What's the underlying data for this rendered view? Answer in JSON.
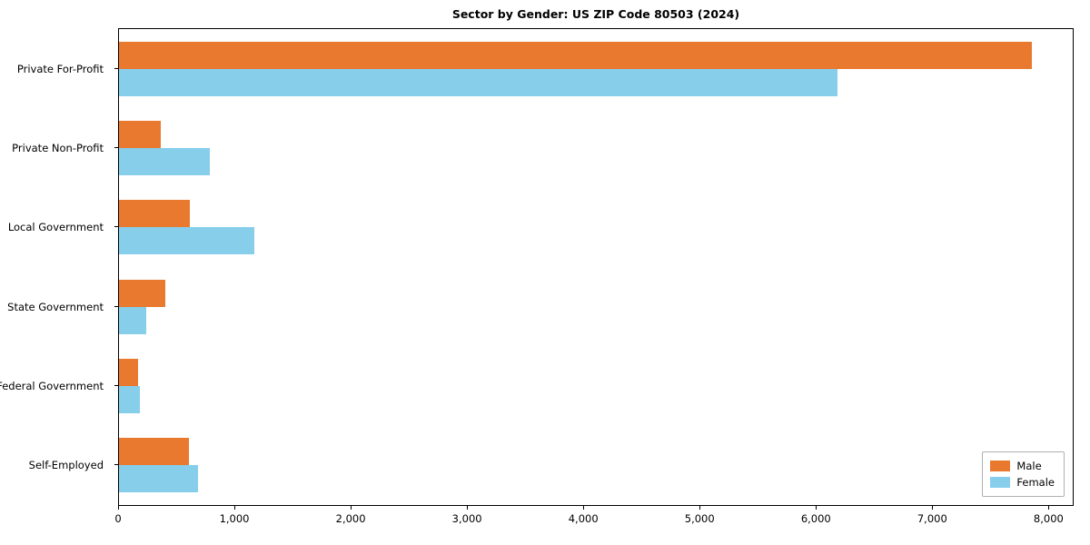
{
  "chart_data": {
    "type": "bar",
    "orientation": "horizontal",
    "title": "Sector by Gender: US ZIP Code 80503 (2024)",
    "categories": [
      "Private For-Profit",
      "Private Non-Profit",
      "Local Government",
      "State Government",
      "Federal Government",
      "Self-Employed"
    ],
    "series": [
      {
        "name": "Male",
        "color": "#e8792e",
        "values": [
          7850,
          360,
          610,
          400,
          165,
          600
        ]
      },
      {
        "name": "Female",
        "color": "#87ceeb",
        "values": [
          6180,
          780,
          1160,
          235,
          180,
          680
        ]
      }
    ],
    "xlim": [
      0,
      8200
    ],
    "xticks": [
      0,
      1000,
      2000,
      3000,
      4000,
      5000,
      6000,
      7000,
      8000
    ],
    "xtick_labels": [
      "0",
      "1,000",
      "2,000",
      "3,000",
      "4,000",
      "5,000",
      "6,000",
      "7,000",
      "8,000"
    ],
    "ylabel": "",
    "xlabel": "",
    "grid": false,
    "legend_position": "lower right"
  }
}
